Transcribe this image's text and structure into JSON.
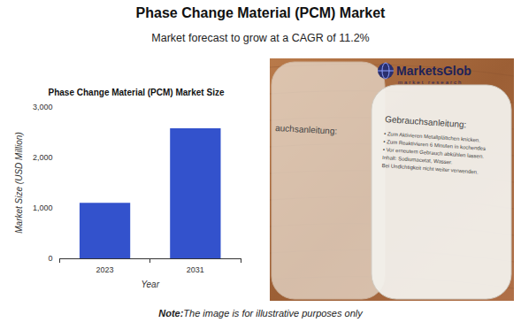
{
  "header": {
    "title": "Phase Change Material (PCM) Market",
    "subtitle": "Market forecast to grow at a CAGR of 11.2%"
  },
  "chart_data": {
    "type": "bar",
    "title": "Phase Change Material (PCM) Market Size",
    "x_label": "Year",
    "y_label": "Market Size (USD Million)",
    "categories": [
      "2023",
      "2031"
    ],
    "values": [
      1100,
      2580
    ],
    "color": "#3352cc",
    "ylim": [
      0,
      3000
    ],
    "yticks": [
      0,
      {
        "value": 1000,
        "label": "1,000"
      },
      {
        "value": 2000,
        "label": "2,000"
      },
      {
        "value": 3000,
        "label": "3,000"
      }
    ],
    "grid": false
  },
  "photo": {
    "logo": {
      "name": "MarketsGlob",
      "tagline": "market research"
    },
    "left_pack": [
      "auchsanleitung:"
    ],
    "right_pack": [
      "Gebrauchsanleitung:",
      "• Zum Aktivieren Metallplättchen knicken.",
      "• Zum Reaktivieren 6 Minuten in kochendes",
      "• Vor erneutem Gebrauch abkühlen lassen.",
      "Inhalt: Sodiumacetat, Wasser.",
      "Bei Undichtigkeit nicht weiter verwenden."
    ]
  },
  "note": {
    "label": "Note:",
    "text": "The image is for illustrative purposes only"
  }
}
